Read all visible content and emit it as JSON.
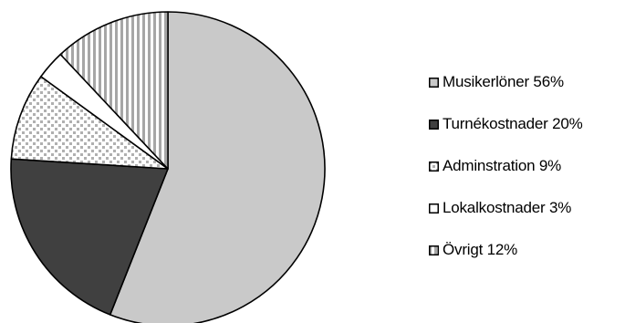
{
  "chart_data": {
    "type": "pie",
    "start_angle_deg": 0,
    "direction": "clockwise",
    "legend_position": "right",
    "slices": [
      {
        "label": "Musikerlöner 56%",
        "value": 56,
        "fill": "#c9c9c9",
        "pattern": "solid-light"
      },
      {
        "label": "Turnékostnader 20%",
        "value": 20,
        "fill": "#404040",
        "pattern": "solid-dark"
      },
      {
        "label": "Adminstration 9%",
        "value": 9,
        "fill": "#ffffff",
        "pattern": "checker"
      },
      {
        "label": "Lokalkostnader 3%",
        "value": 3,
        "fill": "#ffffff",
        "pattern": "none"
      },
      {
        "label": "Övrigt 12%",
        "value": 12,
        "fill": "#ffffff",
        "pattern": "vertical-stripes"
      }
    ]
  }
}
